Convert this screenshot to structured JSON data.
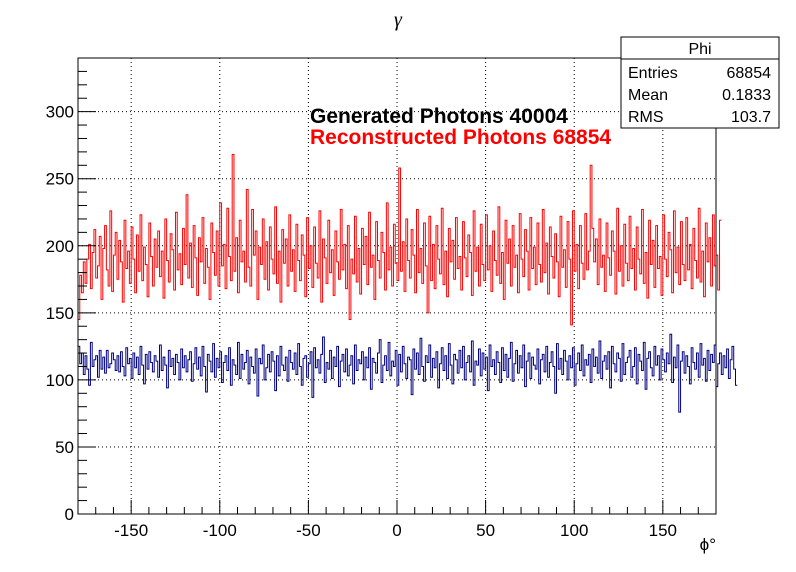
{
  "chart_data": {
    "type": "line",
    "title": "γ",
    "xlabel": "ϕ°",
    "ylabel": "",
    "xlim": [
      -180,
      180
    ],
    "ylim": [
      0,
      340
    ],
    "x_ticks": [
      -150,
      -100,
      -50,
      0,
      50,
      100,
      150
    ],
    "y_ticks": [
      0,
      50,
      100,
      150,
      200,
      250,
      300
    ],
    "grid": true,
    "bins": 360,
    "series": [
      {
        "color": "#000080",
        "description_level": 110,
        "values": [
          125,
          112,
          120,
          104,
          118,
          108,
          96,
          128,
          110,
          115,
          118,
          102,
          122,
          108,
          117,
          105,
          122,
          109,
          112,
          120,
          115,
          107,
          118,
          106,
          121,
          110,
          103,
          124,
          112,
          116,
          101,
          120,
          109,
          117,
          104,
          125,
          111,
          97,
          119,
          108,
          121,
          113,
          106,
          118,
          114,
          102,
          126,
          107,
          117,
          111,
          94,
          122,
          110,
          116,
          104,
          119,
          113,
          100,
          123,
          109,
          118,
          106,
          115,
          121,
          99,
          112,
          124,
          108,
          117,
          103,
          125,
          110,
          91,
          119,
          114,
          106,
          127,
          102,
          116,
          109,
          121,
          98,
          113,
          118,
          107,
          124,
          96,
          115,
          111,
          104,
          128,
          101,
          119,
          108,
          113,
          122,
          97,
          117,
          110,
          105,
          123,
          88,
          116,
          112,
          126,
          100,
          109,
          119,
          106,
          121,
          114,
          92,
          118,
          103,
          125,
          111,
          107,
          117,
          99,
          122,
          113,
          108,
          120,
          104,
          127,
          110,
          96,
          116,
          118,
          102,
          112,
          121,
          87,
          124,
          109,
          115,
          105,
          119,
          132,
          98,
          113,
          108,
          122,
          101,
          117,
          110,
          125,
          95,
          114,
          119,
          106,
          123,
          103,
          111,
          118,
          97,
          126,
          107,
          115,
          112,
          121,
          100,
          117,
          109,
          124,
          93,
          116,
          113,
          105,
          120,
          130,
          98,
          111,
          118,
          107,
          128,
          103,
          114,
          110,
          122,
          96,
          119,
          106,
          125,
          112,
          101,
          117,
          115,
          89,
          123,
          108,
          120,
          104,
          131,
          110,
          99,
          118,
          113,
          126,
          102,
          116,
          109,
          121,
          94,
          112,
          124,
          107,
          118,
          101,
          127,
          111,
          97,
          119,
          115,
          105,
          122,
          109,
          125,
          100,
          113,
          118,
          106,
          129,
          96,
          114,
          111,
          123,
          103,
          120,
          108,
          117,
          92,
          126,
          110,
          115,
          104,
          121,
          113,
          98,
          124,
          107,
          119,
          102,
          116,
          128,
          99,
          112,
          122,
          105,
          118,
          109,
          126,
          95,
          114,
          120,
          101,
          117,
          111,
          108,
          123,
          97,
          115,
          119,
          106,
          125,
          102,
          113,
          121,
          110,
          90,
          127,
          108,
          116,
          104,
          122,
          114,
          100,
          118,
          109,
          124,
          96,
          112,
          120,
          107,
          126,
          103,
          115,
          111,
          119,
          98,
          123,
          110,
          117,
          105,
          129,
          101,
          114,
          118,
          108,
          121,
          94,
          125,
          112,
          106,
          120,
          116,
          99,
          127,
          104,
          113,
          117,
          122,
          102,
          110,
          124,
          97,
          119,
          114,
          107,
          128,
          93,
          116,
          121,
          109,
          103,
          125,
          111,
          118,
          100,
          123,
          115,
          106,
          120,
          112,
          134,
          98,
          117,
          109,
          126,
          76,
          114,
          121,
          105,
          118,
          110,
          97,
          124,
          113,
          108,
          120,
          102,
          127,
          111,
          116,
          99,
          122,
          107,
          119,
          113,
          126,
          95,
          112,
          120,
          104,
          118,
          109,
          123,
          101,
          115,
          125,
          108,
          96
        ]
      },
      {
        "color": "#ff0000",
        "description_level": 195,
        "values": [
          145,
          178,
          165,
          188,
          172,
          190,
          201,
          168,
          195,
          212,
          176,
          185,
          207,
          160,
          198,
          215,
          182,
          170,
          226,
          166,
          193,
          210,
          175,
          204,
          188,
          158,
          219,
          183,
          196,
          172,
          214,
          190,
          165,
          208,
          181,
          223,
          174,
          199,
          186,
          162,
          217,
          192,
          170,
          205,
          184,
          211,
          177,
          196,
          161,
          220,
          189,
          173,
          209,
          197,
          167,
          225,
          182,
          194,
          171,
          213,
          186,
          238,
          176,
          202,
          169,
          215,
          191,
          163,
          206,
          188,
          221,
          172,
          198,
          184,
          160,
          217,
          195,
          178,
          211,
          170,
          232,
          185,
          201,
          168,
          228,
          192,
          174,
          268,
          181,
          206,
          165,
          219,
          188,
          196,
          173,
          242,
          184,
          170,
          227,
          193,
          211,
          160,
          199,
          186,
          220,
          175,
          203,
          167,
          214,
          190,
          179,
          229,
          172,
          196,
          158,
          212,
          187,
          205,
          170,
          223,
          181,
          197,
          166,
          216,
          189,
          174,
          208,
          193,
          162,
          221,
          183,
          200,
          169,
          214,
          187,
          176,
          226,
          158,
          205,
          191,
          172,
          219,
          180,
          197,
          163,
          211,
          188,
          175,
          227,
          182,
          201,
          168,
          215,
          145,
          190,
          179,
          222,
          173,
          198,
          164,
          213,
          186,
          207,
          171,
          225,
          184,
          193,
          160,
          218,
          189,
          176,
          210,
          195,
          167,
          232,
          182,
          199,
          170,
          216,
          187,
          174,
          258,
          181,
          203,
          166,
          220,
          189,
          176,
          212,
          193,
          165,
          227,
          180,
          198,
          172,
          217,
          185,
          150,
          222,
          174,
          201,
          168,
          215,
          190,
          179,
          228,
          171,
          196,
          162,
          213,
          188,
          204,
          175,
          221,
          183,
          192,
          167,
          218,
          191,
          177,
          208,
          195,
          163,
          226,
          181,
          199,
          170,
          216,
          186,
          174,
          223,
          182,
          200,
          166,
          211,
          189,
          178,
          229,
          172,
          195,
          160,
          219,
          187,
          205,
          170,
          215,
          184,
          193,
          165,
          224,
          190,
          177,
          212,
          196,
          167,
          221,
          183,
          199,
          171,
          217,
          186,
          173,
          227,
          180,
          202,
          164,
          214,
          192,
          176,
          209,
          188,
          162,
          222,
          184,
          197,
          169,
          218,
          190,
          141,
          226,
          181,
          201,
          168,
          215,
          187,
          175,
          224,
          182,
          196,
          260,
          213,
          188,
          205,
          171,
          220,
          184,
          193,
          166,
          217,
          191,
          178,
          211,
          196,
          164,
          228,
          181,
          200,
          170,
          216,
          187,
          174,
          222,
          183,
          198,
          167,
          214,
          190,
          179,
          227,
          172,
          195,
          161,
          219,
          186,
          204,
          169,
          215,
          183,
          192,
          163,
          223,
          190,
          177,
          210,
          197,
          165,
          226,
          180,
          199,
          171,
          218,
          186,
          174,
          221,
          182,
          201,
          168,
          213,
          189,
          176,
          228,
          173,
          196,
          162,
          217,
          188,
          206,
          170,
          223,
          185,
          193,
          167,
          219
        ]
      }
    ],
    "stats_box": {
      "name": "Phi",
      "rows": [
        {
          "label": "Entries",
          "value": "68854"
        },
        {
          "label": "Mean",
          "value": "0.1833"
        },
        {
          "label": "RMS",
          "value": "103.7"
        }
      ]
    },
    "annotations": [
      {
        "text": "Generated Photons 40004",
        "color": "#000000"
      },
      {
        "text": "Reconstructed Photons 68854",
        "color": "#ff0000"
      }
    ]
  }
}
